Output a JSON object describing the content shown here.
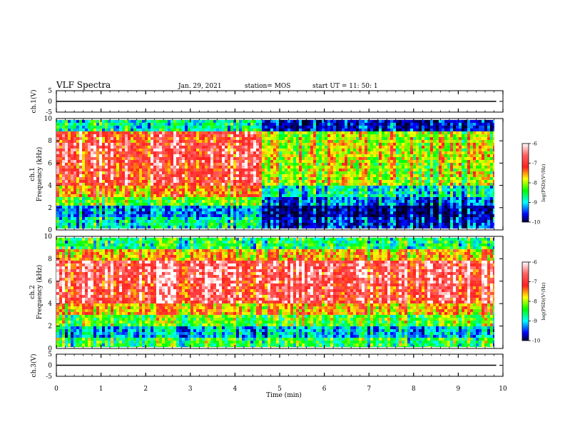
{
  "header": {
    "title": "VLF Spectra",
    "date": "Jan. 29, 2021",
    "station": "station= MOS",
    "start": "start  UT =   11: 50: 1"
  },
  "colorbar": {
    "label": "log(PSD)(V²/Hz)",
    "ticks": [
      "-6",
      "-7",
      "-8",
      "-9",
      "-10"
    ],
    "colors": [
      "#ffffff",
      "#ff2020",
      "#ffff00",
      "#00ff00",
      "#00ffff",
      "#0000ff",
      "#000033"
    ]
  },
  "chart_data": [
    {
      "type": "line",
      "name": "channel 1 voltage",
      "ylabel": "ch.1(V)",
      "ylim": [
        -5,
        5
      ],
      "yticks": [
        "5",
        "0",
        "-5"
      ],
      "xlim": [
        0,
        10
      ],
      "x": [
        0,
        10
      ],
      "y": [
        0,
        0
      ]
    },
    {
      "type": "heatmap",
      "name": "channel 1 spectrogram",
      "ylabel": "ch.1",
      "ylabel2": "Frequency (kHz)",
      "ylim": [
        0,
        10
      ],
      "yticks": [
        "0",
        "2",
        "4",
        "6",
        "8",
        "10"
      ],
      "xlim": [
        0,
        9.85
      ],
      "time_segments_min": [
        0,
        1,
        2,
        3,
        4,
        4.6,
        5,
        6,
        7,
        8,
        9,
        9.85
      ],
      "band_power_log_psd": {
        "bands_khz": [
          "0-1",
          "1-2",
          "2-3",
          "3-4",
          "4-6",
          "6-8",
          "8-9",
          "9-10"
        ],
        "t_0_to_4.6_min": [
          -8.5,
          -9,
          -8,
          -7.2,
          -6.7,
          -6.6,
          -6.8,
          -8.5
        ],
        "t_4.6_to_9.85_min": [
          -9.3,
          -9.6,
          -9,
          -8.5,
          -7.6,
          -7.5,
          -7.6,
          -9.4
        ]
      }
    },
    {
      "type": "heatmap",
      "name": "channel 2 spectrogram",
      "ylabel": "ch.2",
      "ylabel2": "Frequency (kHz)",
      "ylim": [
        0,
        10
      ],
      "yticks": [
        "0",
        "2",
        "4",
        "6",
        "8",
        "10"
      ],
      "xlim": [
        0,
        9.85
      ],
      "band_power_log_psd": {
        "bands_khz": [
          "0-1",
          "1-2",
          "2-3",
          "3-4",
          "4-6",
          "6-8",
          "8-9",
          "9-10"
        ],
        "t_0_to_9.85_min": [
          -8.2,
          -8.8,
          -8,
          -7.3,
          -6.6,
          -6.5,
          -7.3,
          -8.3
        ]
      }
    },
    {
      "type": "line",
      "name": "channel 3 voltage",
      "ylabel": "ch.3(V)",
      "ylim": [
        -5,
        5
      ],
      "yticks": [
        "5",
        "0",
        "-5"
      ],
      "xlim": [
        0,
        10
      ],
      "x": [
        0,
        10
      ],
      "y": [
        0,
        0
      ]
    }
  ],
  "xaxis": {
    "label": "Time  (min)",
    "ticks": [
      "0",
      "1",
      "2",
      "3",
      "4",
      "5",
      "6",
      "7",
      "8",
      "9",
      "10"
    ]
  }
}
